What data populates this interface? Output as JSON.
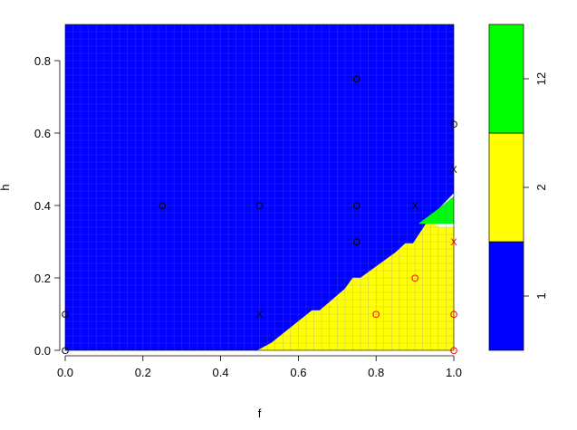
{
  "chart_data": {
    "type": "heatmap",
    "title": "",
    "xlabel": "f",
    "ylabel": "h",
    "xlim": [
      0,
      1
    ],
    "ylim": [
      0,
      0.9
    ],
    "x_ticks": [
      "0.0",
      "0.2",
      "0.4",
      "0.6",
      "0.8",
      "1.0"
    ],
    "x_tick_values": [
      0,
      0.2,
      0.4,
      0.6,
      0.8,
      1.0
    ],
    "y_ticks": [
      "0.0",
      "0.2",
      "0.4",
      "0.6",
      "0.8"
    ],
    "y_tick_values": [
      0,
      0.2,
      0.4,
      0.6,
      0.8
    ],
    "colors": {
      "class_1": "#0000ff",
      "class_2": "#ffff00",
      "class_12": "#00ff00",
      "grid_line": "#6f6fff",
      "grid_line_yellow": "#c8c800",
      "point_black": "#000000",
      "point_red": "#ff0000"
    },
    "regions": [
      {
        "class": "1",
        "color": "#0000ff",
        "polygon": [
          [
            0,
            0
          ],
          [
            0.495,
            0
          ],
          [
            0.53,
            0.02
          ],
          [
            0.6,
            0.08
          ],
          [
            0.635,
            0.11
          ],
          [
            0.655,
            0.11
          ],
          [
            0.72,
            0.17
          ],
          [
            0.74,
            0.2
          ],
          [
            0.76,
            0.2
          ],
          [
            0.85,
            0.27
          ],
          [
            0.875,
            0.295
          ],
          [
            0.895,
            0.295
          ],
          [
            0.935,
            0.36
          ],
          [
            0.91,
            0.35
          ],
          [
            0.96,
            0.39
          ],
          [
            1.0,
            0.435
          ],
          [
            1.0,
            0.9
          ],
          [
            0,
            0.9
          ]
        ]
      },
      {
        "class": "2",
        "color": "#ffff00",
        "polygon": [
          [
            0.495,
            0
          ],
          [
            1.0,
            0
          ],
          [
            1.0,
            0.34
          ],
          [
            0.96,
            0.34
          ],
          [
            0.935,
            0.36
          ],
          [
            0.895,
            0.295
          ],
          [
            0.875,
            0.295
          ],
          [
            0.85,
            0.27
          ],
          [
            0.76,
            0.2
          ],
          [
            0.74,
            0.2
          ],
          [
            0.72,
            0.17
          ],
          [
            0.655,
            0.11
          ],
          [
            0.635,
            0.11
          ],
          [
            0.6,
            0.08
          ],
          [
            0.53,
            0.02
          ]
        ]
      },
      {
        "class": "12",
        "color": "#00ff00",
        "polygon": [
          [
            0.91,
            0.35
          ],
          [
            0.96,
            0.39
          ],
          [
            1.0,
            0.425
          ],
          [
            1.0,
            0.35
          ]
        ]
      }
    ],
    "points": [
      {
        "f": 0.0,
        "h": 0.0,
        "marker": "o",
        "color": "#000000"
      },
      {
        "f": 0.0,
        "h": 0.1,
        "marker": "o",
        "color": "#000000"
      },
      {
        "f": 0.25,
        "h": 0.4,
        "marker": "o",
        "color": "#000000"
      },
      {
        "f": 0.5,
        "h": 0.4,
        "marker": "o",
        "color": "#000000"
      },
      {
        "f": 0.5,
        "h": 0.1,
        "marker": "x",
        "color": "#000000"
      },
      {
        "f": 0.75,
        "h": 0.75,
        "marker": "o",
        "color": "#000000"
      },
      {
        "f": 0.75,
        "h": 0.4,
        "marker": "o",
        "color": "#000000"
      },
      {
        "f": 0.75,
        "h": 0.3,
        "marker": "o",
        "color": "#000000"
      },
      {
        "f": 0.9,
        "h": 0.4,
        "marker": "x",
        "color": "#000000"
      },
      {
        "f": 1.0,
        "h": 0.625,
        "marker": "o",
        "color": "#000000"
      },
      {
        "f": 1.0,
        "h": 0.5,
        "marker": "x",
        "color": "#000000"
      },
      {
        "f": 0.9,
        "h": 0.2,
        "marker": "o",
        "color": "#ff0000"
      },
      {
        "f": 0.8,
        "h": 0.1,
        "marker": "o",
        "color": "#ff0000"
      },
      {
        "f": 1.0,
        "h": 0.3,
        "marker": "x",
        "color": "#ff0000"
      },
      {
        "f": 1.0,
        "h": 0.1,
        "marker": "o",
        "color": "#ff0000"
      },
      {
        "f": 1.0,
        "h": 0.0,
        "marker": "o",
        "color": "#ff0000"
      }
    ],
    "legend": {
      "placement": "right",
      "entries": [
        {
          "label": "1",
          "color": "#0000ff"
        },
        {
          "label": "2",
          "color": "#ffff00"
        },
        {
          "label": "12",
          "color": "#00ff00"
        }
      ]
    }
  }
}
